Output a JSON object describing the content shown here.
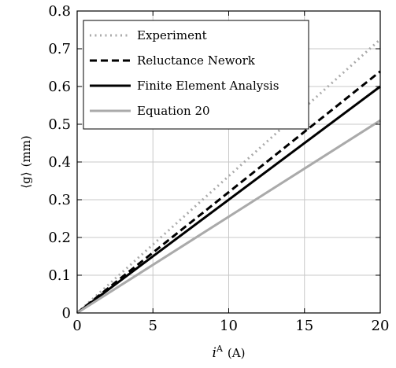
{
  "chart_data": {
    "type": "line",
    "x": [
      0,
      20
    ],
    "xlim": [
      0,
      20
    ],
    "ylim": [
      0,
      0.8
    ],
    "xticks": [
      0,
      5,
      10,
      15,
      20
    ],
    "yticks": [
      0,
      0.1,
      0.2,
      0.3,
      0.4,
      0.5,
      0.6,
      0.7,
      0.8
    ],
    "xtick_labels": [
      "0",
      "5",
      "10",
      "15",
      "20"
    ],
    "ytick_labels": [
      "0",
      "0.1",
      "0.2",
      "0.3",
      "0.4",
      "0.5",
      "0.6",
      "0.7",
      "0.8"
    ],
    "xlabel_main": "i",
    "xlabel_sup": "A",
    "xlabel_unit": "(A)",
    "ylabel_main": "⟨g⟩",
    "ylabel_unit": "(mm)",
    "grid": true,
    "legend_position": "top-left",
    "series": [
      {
        "name": "Experiment",
        "x": [
          0,
          20
        ],
        "values": [
          0,
          0.725
        ],
        "color": "#aaaaaa",
        "style": "dotted"
      },
      {
        "name": "Reluctance Nework",
        "x": [
          0,
          20
        ],
        "values": [
          0,
          0.64
        ],
        "color": "#000000",
        "style": "dashed"
      },
      {
        "name": "Finite Element Analysis",
        "x": [
          0,
          20
        ],
        "values": [
          0,
          0.6
        ],
        "color": "#000000",
        "style": "solid"
      },
      {
        "name": "Equation 20",
        "x": [
          0,
          20
        ],
        "values": [
          0,
          0.51
        ],
        "color": "#aaaaaa",
        "style": "solid"
      }
    ]
  }
}
